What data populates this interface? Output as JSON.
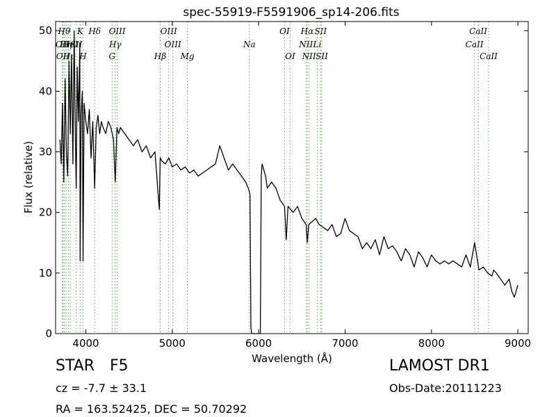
{
  "chart_data": {
    "type": "line",
    "title": "spec-55919-F5591906_sp14-206.fits",
    "xlabel": "Wavelength (Å)",
    "ylabel": "Flux (relative)",
    "xlim": [
      3650,
      9120
    ],
    "ylim": [
      0,
      51.5
    ],
    "xticks": [
      4000,
      5000,
      6000,
      7000,
      8000,
      9000
    ],
    "yticks": [
      0,
      10,
      20,
      30,
      40,
      50
    ],
    "grid": false,
    "line_color": "#000000",
    "marker_color": "#55aa55",
    "series": [
      {
        "x": [
          3700,
          3715,
          3730,
          3745,
          3760,
          3775,
          3790,
          3805,
          3820,
          3835,
          3850,
          3865,
          3880,
          3889,
          3900,
          3915,
          3930,
          3934,
          3945,
          3960,
          3968,
          3980,
          4000,
          4020,
          4040,
          4060,
          4080,
          4102,
          4120,
          4140,
          4160,
          4180,
          4200,
          4230,
          4260,
          4290,
          4320,
          4340,
          4360,
          4380,
          4400,
          4450,
          4500,
          4550,
          4600,
          4650,
          4700,
          4750,
          4800,
          4850,
          4861,
          4880,
          4920,
          4960,
          5000,
          5050,
          5100,
          5150,
          5200,
          5250,
          5300,
          5350,
          5400,
          5450,
          5500,
          5550,
          5600,
          5650,
          5700,
          5750,
          5800,
          5850,
          5880,
          5900,
          5910,
          5920,
          6020,
          6030,
          6040,
          6060,
          6080,
          6100,
          6150,
          6200,
          6250,
          6300,
          6320,
          6340,
          6400,
          6450,
          6500,
          6550,
          6563,
          6580,
          6620,
          6660,
          6700,
          6750,
          6800,
          6850,
          6900,
          6950,
          7000,
          7050,
          7100,
          7150,
          7200,
          7250,
          7300,
          7350,
          7400,
          7450,
          7500,
          7550,
          7600,
          7650,
          7700,
          7750,
          7800,
          7850,
          7900,
          7950,
          8000,
          8050,
          8100,
          8150,
          8200,
          8250,
          8300,
          8350,
          8400,
          8450,
          8500,
          8550,
          8600,
          8650,
          8700,
          8720,
          8750,
          8800,
          8850,
          8900,
          8930,
          8960,
          9000
        ],
        "y": [
          32,
          28,
          38,
          25,
          42,
          30,
          26,
          45,
          33,
          46,
          28,
          50,
          31,
          24,
          44,
          35,
          48,
          12,
          36,
          40,
          12,
          38,
          35,
          33,
          37,
          29,
          35,
          24,
          34,
          36,
          33,
          35,
          34,
          33,
          35,
          34,
          32,
          25,
          34,
          33,
          34,
          33,
          32,
          31,
          32,
          30,
          31,
          29,
          30,
          20.5,
          29,
          28.5,
          28,
          29,
          27.5,
          28,
          27,
          27.5,
          26.5,
          27,
          26,
          26.5,
          27,
          27.5,
          28,
          31,
          29,
          27,
          28,
          27,
          26,
          25,
          24,
          23,
          1,
          0,
          0,
          26,
          28,
          27,
          26,
          24,
          25,
          24,
          22,
          21,
          15.5,
          21,
          20,
          21,
          19,
          18,
          15,
          18,
          18.5,
          19,
          18,
          17.5,
          17,
          18,
          16,
          16.5,
          19,
          17,
          16.5,
          16,
          14,
          15,
          14,
          15.5,
          13,
          16,
          14,
          14.5,
          13.5,
          12,
          14,
          13,
          11,
          13.5,
          12.5,
          11,
          13,
          12,
          11.5,
          12,
          11.5,
          12,
          11.5,
          11,
          13,
          11,
          15,
          10.5,
          11,
          10,
          9.5,
          10.5,
          10,
          9,
          8,
          9,
          7,
          6,
          8
        ]
      }
    ],
    "line_markers": [
      {
        "x": 3727,
        "label": "OII",
        "row": 1
      },
      {
        "x": 3734,
        "label": "OII",
        "row": 2
      },
      {
        "x": 3750,
        "label": "Hθ",
        "row": 0
      },
      {
        "x": 3771,
        "label": "Hη",
        "row": 1
      },
      {
        "x": 3798,
        "label": "Hι",
        "row": 2
      },
      {
        "x": 3820,
        "label": "HeI",
        "row": 1
      },
      {
        "x": 3889,
        "label": "SII",
        "row": 1
      },
      {
        "x": 3934,
        "label": "K",
        "row": 0
      },
      {
        "x": 3968,
        "label": "H",
        "row": 2
      },
      {
        "x": 4102,
        "label": "Hδ",
        "row": 0
      },
      {
        "x": 4304,
        "label": "G",
        "row": 2
      },
      {
        "x": 4340,
        "label": "Hγ",
        "row": 1
      },
      {
        "x": 4363,
        "label": "OIII",
        "row": 0
      },
      {
        "x": 4861,
        "label": "Hβ",
        "row": 2
      },
      {
        "x": 4959,
        "label": "OIII",
        "row": 0
      },
      {
        "x": 5007,
        "label": "OIII",
        "row": 1
      },
      {
        "x": 5175,
        "label": "Mg",
        "row": 2
      },
      {
        "x": 5893,
        "label": "Na",
        "row": 1
      },
      {
        "x": 6300,
        "label": "OI",
        "row": 0
      },
      {
        "x": 6364,
        "label": "OI",
        "row": 2
      },
      {
        "x": 6548,
        "label": "NII",
        "row": 1
      },
      {
        "x": 6563,
        "label": "Hα",
        "row": 0
      },
      {
        "x": 6583,
        "label": "NII",
        "row": 2
      },
      {
        "x": 6678,
        "label": "Li",
        "row": 1
      },
      {
        "x": 6717,
        "label": "SII",
        "row": 0
      },
      {
        "x": 6731,
        "label": "SII",
        "row": 2
      },
      {
        "x": 8498,
        "label": "CaII",
        "row": 1
      },
      {
        "x": 8542,
        "label": "CaII",
        "row": 0
      },
      {
        "x": 8662,
        "label": "CaII",
        "row": 2
      }
    ]
  },
  "info": {
    "class_label": "STAR",
    "subclass": "F5",
    "survey": "LAMOST DR1",
    "cz_text": "cz = -7.7 ± 33.1",
    "obs_date": "Obs-Date:20111223",
    "coords": "RA = 163.52425, DEC = 50.70292"
  }
}
